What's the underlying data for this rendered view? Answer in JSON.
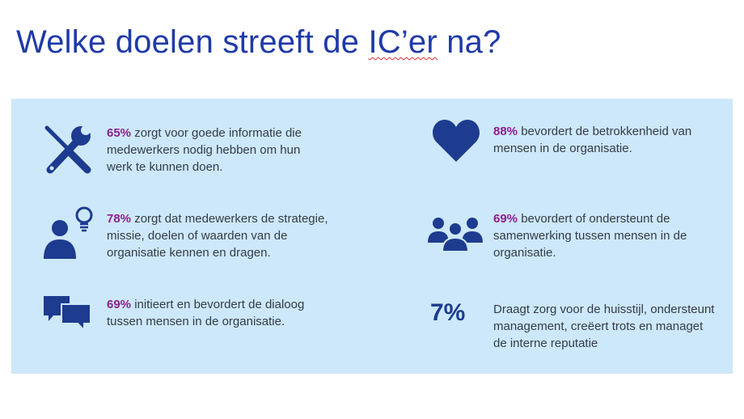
{
  "slide": {
    "title_start": "Welke doelen streeft de ",
    "title_marked": "IC’er",
    "title_end": " na?",
    "accent_color": "#8e1e8e",
    "icon_color": "#1d3b8f",
    "panel_color": "#cde8fa"
  },
  "items": [
    {
      "icon": "tools-icon",
      "value": "65%",
      "text": " zorgt voor goede informatie die medewerkers nodig hebben om hun werk te kunnen doen."
    },
    {
      "icon": "person-lightbulb-icon",
      "value": "78%",
      "text": " zorgt dat medewerkers de strategie, missie, doelen of waarden van de organisatie kennen en dragen."
    },
    {
      "icon": "chat-bubbles-icon",
      "value": "69%",
      "text": " initieert en bevordert de dialoog tussen mensen in de organisatie."
    },
    {
      "icon": "heart-icon",
      "value": "88%",
      "text": " bevordert de betrokkenheid van mensen in de organisatie."
    },
    {
      "icon": "group-icon",
      "value": "69%",
      "text": " bevordert of ondersteunt de samenwerking tussen mensen in de organisatie."
    },
    {
      "value": "7%",
      "text": "Draagt zorg voor de huisstijl, ondersteunt management, creëert trots en managet de interne reputatie"
    }
  ]
}
